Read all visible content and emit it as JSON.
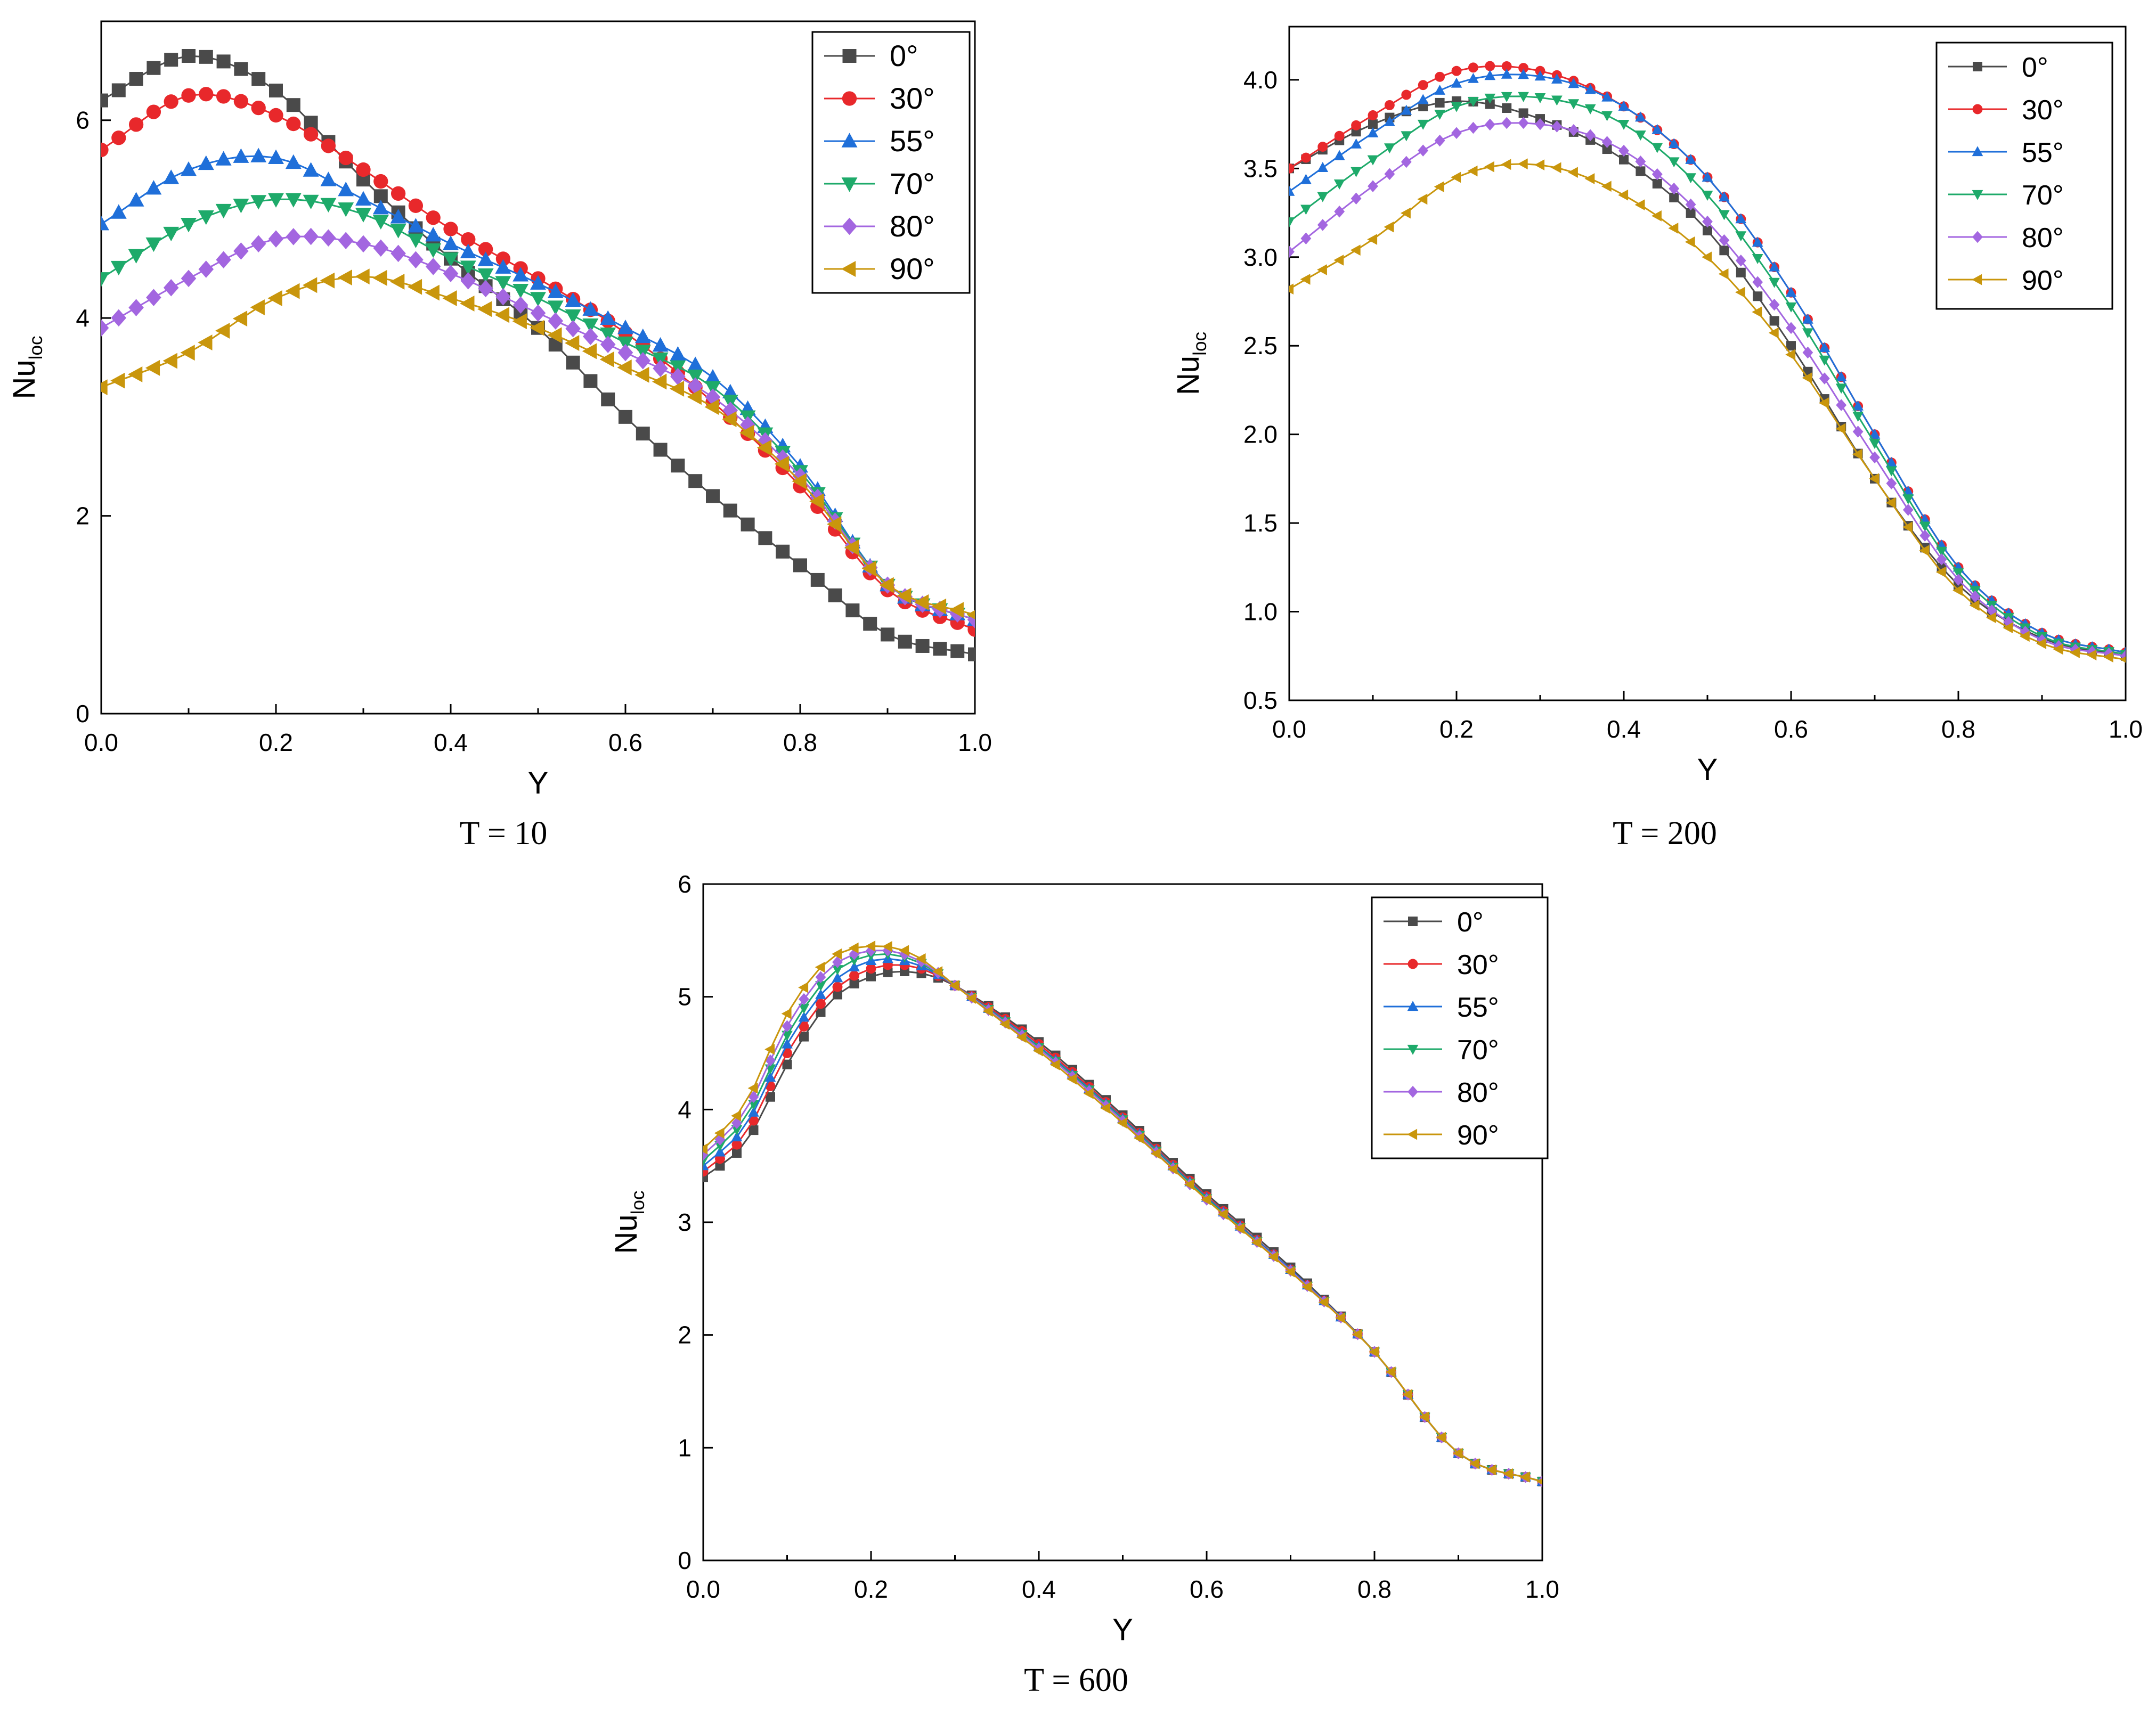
{
  "chart_data": [
    {
      "type": "line",
      "caption": "T = 10",
      "xlabel": "Y",
      "ylabel": "Nu",
      "ylabel_sub": "loc",
      "xlim": [
        0,
        1.0
      ],
      "ylim": [
        0,
        7.0
      ],
      "xticks": [
        0,
        0.2,
        0.4,
        0.6,
        0.8,
        1.0
      ],
      "xtick_labels": [
        "0.0",
        "0.2",
        "0.4",
        "0.6",
        "0.8",
        "1.0"
      ],
      "yticks": [
        0,
        2,
        4,
        6
      ],
      "ytick_labels": [
        "0",
        "2",
        "4",
        "6"
      ],
      "legend_position": "top-right",
      "marker_shape": "large",
      "series": [
        {
          "name": "0°",
          "color": "#4a4a4a",
          "marker": "square",
          "x": [
            0,
            0.1,
            0.2,
            0.3,
            0.4,
            0.5,
            0.6,
            0.7,
            0.8,
            0.9,
            1.0
          ],
          "y": [
            6.2,
            6.65,
            6.3,
            5.4,
            4.6,
            3.9,
            3.0,
            2.2,
            1.5,
            0.8,
            0.6
          ]
        },
        {
          "name": "30°",
          "color": "#e8282b",
          "marker": "circle",
          "x": [
            0,
            0.1,
            0.2,
            0.3,
            0.4,
            0.5,
            0.6,
            0.7,
            0.8,
            0.9,
            1.0
          ],
          "y": [
            5.7,
            6.25,
            6.05,
            5.5,
            4.9,
            4.4,
            3.85,
            3.15,
            2.3,
            1.25,
            0.85
          ]
        },
        {
          "name": "55°",
          "color": "#1f6fd9",
          "marker": "triangle-up",
          "x": [
            0,
            0.1,
            0.2,
            0.3,
            0.4,
            0.5,
            0.6,
            0.7,
            0.8,
            0.9,
            1.0
          ],
          "y": [
            4.95,
            5.5,
            5.62,
            5.2,
            4.75,
            4.35,
            3.9,
            3.4,
            2.5,
            1.3,
            0.95
          ]
        },
        {
          "name": "70°",
          "color": "#1eaa6a",
          "marker": "triangle-down",
          "x": [
            0,
            0.1,
            0.2,
            0.3,
            0.4,
            0.5,
            0.6,
            0.7,
            0.8,
            0.9,
            1.0
          ],
          "y": [
            4.4,
            4.95,
            5.2,
            5.05,
            4.6,
            4.2,
            3.75,
            3.3,
            2.45,
            1.3,
            0.95
          ]
        },
        {
          "name": "80°",
          "color": "#a366e0",
          "marker": "diamond",
          "x": [
            0,
            0.1,
            0.2,
            0.3,
            0.4,
            0.5,
            0.6,
            0.7,
            0.8,
            0.9,
            1.0
          ],
          "y": [
            3.9,
            4.4,
            4.8,
            4.75,
            4.45,
            4.05,
            3.65,
            3.2,
            2.4,
            1.3,
            0.95
          ]
        },
        {
          "name": "90°",
          "color": "#c9960c",
          "marker": "triangle-left",
          "x": [
            0,
            0.1,
            0.2,
            0.3,
            0.4,
            0.5,
            0.6,
            0.7,
            0.8,
            0.9,
            1.0
          ],
          "y": [
            3.3,
            3.65,
            4.2,
            4.42,
            4.2,
            3.9,
            3.5,
            3.1,
            2.35,
            1.3,
            1.0
          ]
        }
      ]
    },
    {
      "type": "line",
      "caption": "T = 200",
      "xlabel": "Y",
      "ylabel": "Nu",
      "ylabel_sub": "loc",
      "xlim": [
        0,
        1.0
      ],
      "ylim": [
        0.5,
        4.3
      ],
      "xticks": [
        0,
        0.2,
        0.4,
        0.6,
        0.8,
        1.0
      ],
      "xtick_labels": [
        "0.0",
        "0.2",
        "0.4",
        "0.6",
        "0.8",
        "1.0"
      ],
      "yticks": [
        0.5,
        1.0,
        1.5,
        2.0,
        2.5,
        3.0,
        3.5,
        4.0
      ],
      "ytick_labels": [
        "0.5",
        "1.0",
        "1.5",
        "2.0",
        "2.5",
        "3.0",
        "3.5",
        "4.0"
      ],
      "legend_position": "top-right",
      "marker_shape": "small",
      "series": [
        {
          "name": "0°",
          "color": "#4a4a4a",
          "marker": "square",
          "x": [
            0,
            0.1,
            0.2,
            0.3,
            0.4,
            0.5,
            0.6,
            0.7,
            0.8,
            0.9,
            1.0
          ],
          "y": [
            3.5,
            3.75,
            3.88,
            3.78,
            3.55,
            3.15,
            2.5,
            1.75,
            1.15,
            0.85,
            0.75
          ]
        },
        {
          "name": "30°",
          "color": "#e8282b",
          "marker": "circle",
          "x": [
            0,
            0.1,
            0.2,
            0.3,
            0.4,
            0.5,
            0.6,
            0.7,
            0.8,
            0.9,
            1.0
          ],
          "y": [
            3.5,
            3.8,
            4.05,
            4.05,
            3.85,
            3.45,
            2.8,
            2.0,
            1.25,
            0.88,
            0.77
          ]
        },
        {
          "name": "55°",
          "color": "#1f6fd9",
          "marker": "triangle-up",
          "x": [
            0,
            0.1,
            0.2,
            0.3,
            0.4,
            0.5,
            0.6,
            0.7,
            0.8,
            0.9,
            1.0
          ],
          "y": [
            3.37,
            3.7,
            3.98,
            4.02,
            3.85,
            3.45,
            2.8,
            2.0,
            1.25,
            0.88,
            0.77
          ]
        },
        {
          "name": "70°",
          "color": "#1eaa6a",
          "marker": "triangle-down",
          "x": [
            0,
            0.1,
            0.2,
            0.3,
            0.4,
            0.5,
            0.6,
            0.7,
            0.8,
            0.9,
            1.0
          ],
          "y": [
            3.2,
            3.55,
            3.85,
            3.9,
            3.75,
            3.35,
            2.72,
            1.95,
            1.22,
            0.86,
            0.76
          ]
        },
        {
          "name": "80°",
          "color": "#a366e0",
          "marker": "diamond",
          "x": [
            0,
            0.1,
            0.2,
            0.3,
            0.4,
            0.5,
            0.6,
            0.7,
            0.8,
            0.9,
            1.0
          ],
          "y": [
            3.03,
            3.4,
            3.7,
            3.75,
            3.6,
            3.2,
            2.6,
            1.87,
            1.18,
            0.84,
            0.75
          ]
        },
        {
          "name": "90°",
          "color": "#c9960c",
          "marker": "triangle-left",
          "x": [
            0,
            0.1,
            0.2,
            0.3,
            0.4,
            0.5,
            0.6,
            0.7,
            0.8,
            0.9,
            1.0
          ],
          "y": [
            2.82,
            3.1,
            3.45,
            3.52,
            3.35,
            3.0,
            2.45,
            1.75,
            1.12,
            0.82,
            0.73
          ]
        }
      ]
    },
    {
      "type": "line",
      "caption": "T = 600",
      "xlabel": "Y",
      "ylabel": "Nu",
      "ylabel_sub": "loc",
      "xlim": [
        0,
        1.0
      ],
      "ylim": [
        0,
        6.0
      ],
      "xticks": [
        0,
        0.2,
        0.4,
        0.6,
        0.8,
        1.0
      ],
      "xtick_labels": [
        "0.0",
        "0.2",
        "0.4",
        "0.6",
        "0.8",
        "1.0"
      ],
      "yticks": [
        0,
        1,
        2,
        3,
        4,
        5,
        6
      ],
      "ytick_labels": [
        "0",
        "1",
        "2",
        "3",
        "4",
        "5",
        "6"
      ],
      "legend_position": "top-right",
      "marker_shape": "small",
      "series": [
        {
          "name": "0°",
          "color": "#4a4a4a",
          "marker": "square",
          "x": [
            0,
            0.05,
            0.1,
            0.15,
            0.2,
            0.25,
            0.3,
            0.4,
            0.5,
            0.6,
            0.7,
            0.8,
            0.9,
            1.0
          ],
          "y": [
            3.4,
            3.7,
            4.4,
            4.95,
            5.18,
            5.22,
            5.1,
            4.6,
            3.95,
            3.25,
            2.6,
            1.85,
            0.95,
            0.7
          ]
        },
        {
          "name": "30°",
          "color": "#e8282b",
          "marker": "circle",
          "x": [
            0,
            0.05,
            0.1,
            0.15,
            0.2,
            0.25,
            0.3,
            0.4,
            0.5,
            0.6,
            0.7,
            0.8,
            0.9,
            1.0
          ],
          "y": [
            3.45,
            3.78,
            4.5,
            5.02,
            5.25,
            5.27,
            5.1,
            4.58,
            3.93,
            3.23,
            2.58,
            1.85,
            0.95,
            0.7
          ]
        },
        {
          "name": "55°",
          "color": "#1f6fd9",
          "marker": "triangle-up",
          "x": [
            0,
            0.05,
            0.1,
            0.15,
            0.2,
            0.25,
            0.3,
            0.4,
            0.5,
            0.6,
            0.7,
            0.8,
            0.9,
            1.0
          ],
          "y": [
            3.5,
            3.85,
            4.58,
            5.1,
            5.32,
            5.3,
            5.1,
            4.56,
            3.92,
            3.22,
            2.58,
            1.85,
            0.95,
            0.7
          ]
        },
        {
          "name": "70°",
          "color": "#1eaa6a",
          "marker": "triangle-down",
          "x": [
            0,
            0.05,
            0.1,
            0.15,
            0.2,
            0.25,
            0.3,
            0.4,
            0.5,
            0.6,
            0.7,
            0.8,
            0.9,
            1.0
          ],
          "y": [
            3.55,
            3.92,
            4.66,
            5.18,
            5.37,
            5.33,
            5.1,
            4.55,
            3.91,
            3.21,
            2.57,
            1.85,
            0.95,
            0.7
          ]
        },
        {
          "name": "80°",
          "color": "#a366e0",
          "marker": "diamond",
          "x": [
            0,
            0.05,
            0.1,
            0.15,
            0.2,
            0.25,
            0.3,
            0.4,
            0.5,
            0.6,
            0.7,
            0.8,
            0.9,
            1.0
          ],
          "y": [
            3.6,
            3.98,
            4.74,
            5.25,
            5.41,
            5.35,
            5.1,
            4.54,
            3.9,
            3.2,
            2.57,
            1.85,
            0.95,
            0.7
          ]
        },
        {
          "name": "90°",
          "color": "#c9960c",
          "marker": "triangle-left",
          "x": [
            0,
            0.05,
            0.1,
            0.15,
            0.2,
            0.25,
            0.3,
            0.4,
            0.5,
            0.6,
            0.7,
            0.8,
            0.9,
            1.0
          ],
          "y": [
            3.65,
            4.05,
            4.85,
            5.33,
            5.45,
            5.38,
            5.1,
            4.52,
            3.88,
            3.2,
            2.56,
            1.85,
            0.95,
            0.7
          ]
        }
      ]
    }
  ]
}
